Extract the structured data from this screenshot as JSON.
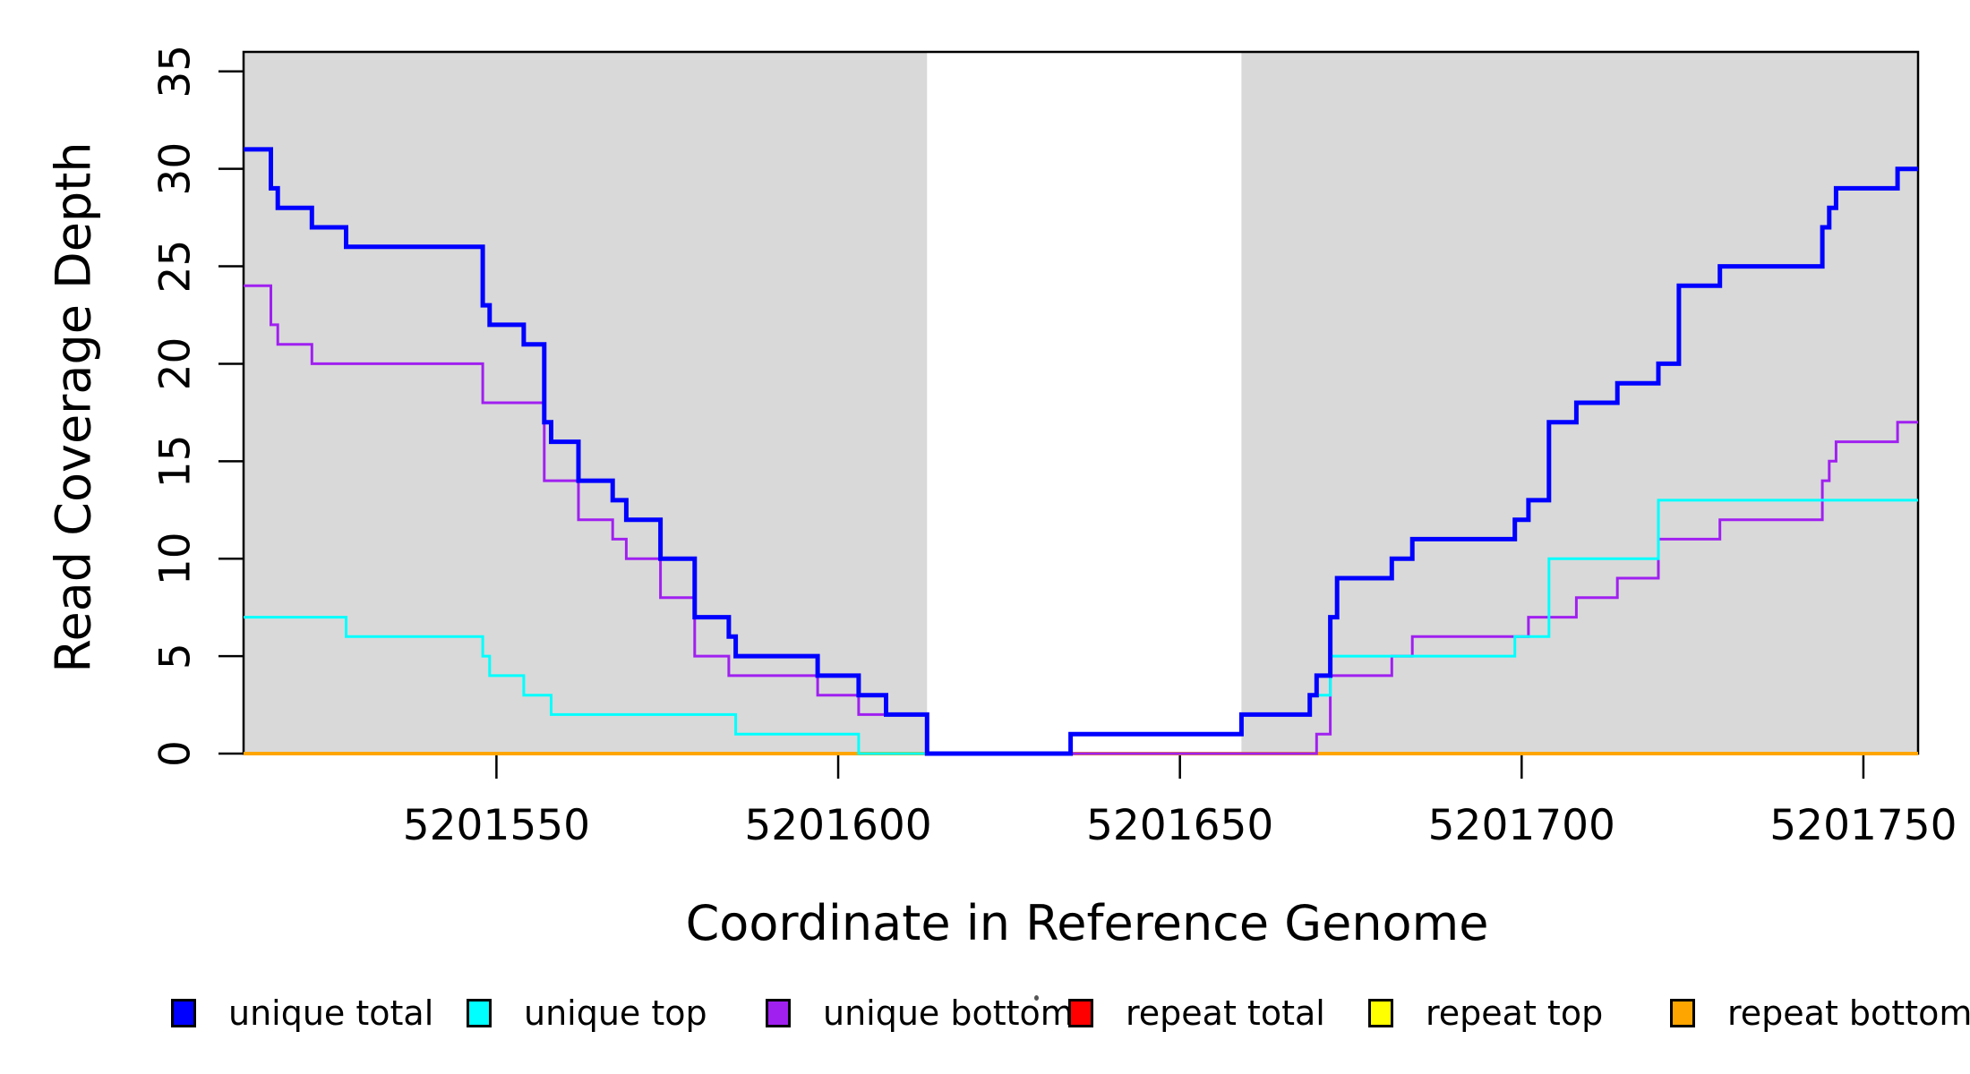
{
  "figure": {
    "background_color": "#ffffff",
    "panel_band_color": "#d9d9d9"
  },
  "chart_data": {
    "type": "line",
    "subtype": "step",
    "title": "",
    "xlabel": "Coordinate in Reference Genome",
    "ylabel": "Read Coverage Depth",
    "xlim": [
      5201513,
      5201758
    ],
    "ylim": [
      0,
      36
    ],
    "x_ticks": [
      5201550,
      5201600,
      5201650,
      5201700,
      5201750
    ],
    "y_ticks": [
      0,
      5,
      10,
      15,
      20,
      25,
      30,
      35
    ],
    "grid": false,
    "legend_position": "bottom",
    "background_bands": [
      {
        "name": "left-gray-region",
        "x0": 5201513,
        "x1": 5201613,
        "color": "#d9d9d9"
      },
      {
        "name": "right-gray-region",
        "x0": 5201659,
        "x1": 5201758,
        "color": "#d9d9d9"
      }
    ],
    "draw_order": [
      "repeat total",
      "repeat top",
      "repeat bottom",
      "unique bottom",
      "unique top",
      "unique total"
    ],
    "series": [
      {
        "name": "unique total",
        "color": "#0000FF",
        "width": 5,
        "steps": [
          [
            5201513,
            31
          ],
          [
            5201517,
            29
          ],
          [
            5201518,
            28
          ],
          [
            5201523,
            27
          ],
          [
            5201528,
            26
          ],
          [
            5201548,
            23
          ],
          [
            5201549,
            22
          ],
          [
            5201554,
            21
          ],
          [
            5201557,
            17
          ],
          [
            5201558,
            16
          ],
          [
            5201562,
            14
          ],
          [
            5201567,
            13
          ],
          [
            5201569,
            12
          ],
          [
            5201574,
            10
          ],
          [
            5201579,
            7
          ],
          [
            5201584,
            6
          ],
          [
            5201585,
            5
          ],
          [
            5201597,
            4
          ],
          [
            5201603,
            3
          ],
          [
            5201607,
            2
          ],
          [
            5201613,
            0
          ],
          [
            5201634,
            1
          ],
          [
            5201659,
            2
          ],
          [
            5201669,
            3
          ],
          [
            5201670,
            4
          ],
          [
            5201672,
            7
          ],
          [
            5201673,
            9
          ],
          [
            5201681,
            10
          ],
          [
            5201684,
            11
          ],
          [
            5201699,
            12
          ],
          [
            5201701,
            13
          ],
          [
            5201704,
            17
          ],
          [
            5201708,
            18
          ],
          [
            5201714,
            19
          ],
          [
            5201720,
            20
          ],
          [
            5201723,
            24
          ],
          [
            5201729,
            25
          ],
          [
            5201744,
            27
          ],
          [
            5201745,
            28
          ],
          [
            5201746,
            29
          ],
          [
            5201755,
            30
          ]
        ]
      },
      {
        "name": "unique top",
        "color": "#00FFFF",
        "width": 3,
        "steps": [
          [
            5201513,
            7
          ],
          [
            5201528,
            6
          ],
          [
            5201548,
            5
          ],
          [
            5201549,
            4
          ],
          [
            5201554,
            3
          ],
          [
            5201558,
            2
          ],
          [
            5201585,
            1
          ],
          [
            5201603,
            0
          ],
          [
            5201634,
            1
          ],
          [
            5201659,
            2
          ],
          [
            5201669,
            3
          ],
          [
            5201672,
            5
          ],
          [
            5201699,
            6
          ],
          [
            5201704,
            10
          ],
          [
            5201720,
            13
          ]
        ]
      },
      {
        "name": "unique bottom",
        "color": "#A020F0",
        "width": 3,
        "steps": [
          [
            5201513,
            24
          ],
          [
            5201517,
            22
          ],
          [
            5201518,
            21
          ],
          [
            5201523,
            20
          ],
          [
            5201548,
            18
          ],
          [
            5201557,
            14
          ],
          [
            5201562,
            12
          ],
          [
            5201567,
            11
          ],
          [
            5201569,
            10
          ],
          [
            5201574,
            8
          ],
          [
            5201579,
            5
          ],
          [
            5201584,
            4
          ],
          [
            5201597,
            3
          ],
          [
            5201603,
            2
          ],
          [
            5201613,
            0
          ],
          [
            5201670,
            1
          ],
          [
            5201672,
            4
          ],
          [
            5201681,
            5
          ],
          [
            5201684,
            6
          ],
          [
            5201701,
            7
          ],
          [
            5201708,
            8
          ],
          [
            5201714,
            9
          ],
          [
            5201720,
            11
          ],
          [
            5201729,
            12
          ],
          [
            5201744,
            14
          ],
          [
            5201745,
            15
          ],
          [
            5201746,
            16
          ],
          [
            5201755,
            17
          ]
        ]
      },
      {
        "name": "repeat total",
        "color": "#FF0000",
        "width": 4,
        "steps": [
          [
            5201513,
            0
          ]
        ]
      },
      {
        "name": "repeat top",
        "color": "#FFFF00",
        "width": 4,
        "steps": [
          [
            5201513,
            0
          ]
        ]
      },
      {
        "name": "repeat bottom",
        "color": "#FFA500",
        "width": 4,
        "steps": [
          [
            5201513,
            0
          ]
        ]
      }
    ]
  },
  "legend": {
    "items": [
      {
        "label": "unique total",
        "color": "#0000FF"
      },
      {
        "label": "unique top",
        "color": "#00FFFF"
      },
      {
        "label": "unique bottom",
        "color": "#A020F0"
      },
      {
        "label": "repeat total",
        "color": "#FF0000"
      },
      {
        "label": "repeat top",
        "color": "#FFFF00"
      },
      {
        "label": "repeat bottom",
        "color": "#FFA500"
      }
    ]
  }
}
